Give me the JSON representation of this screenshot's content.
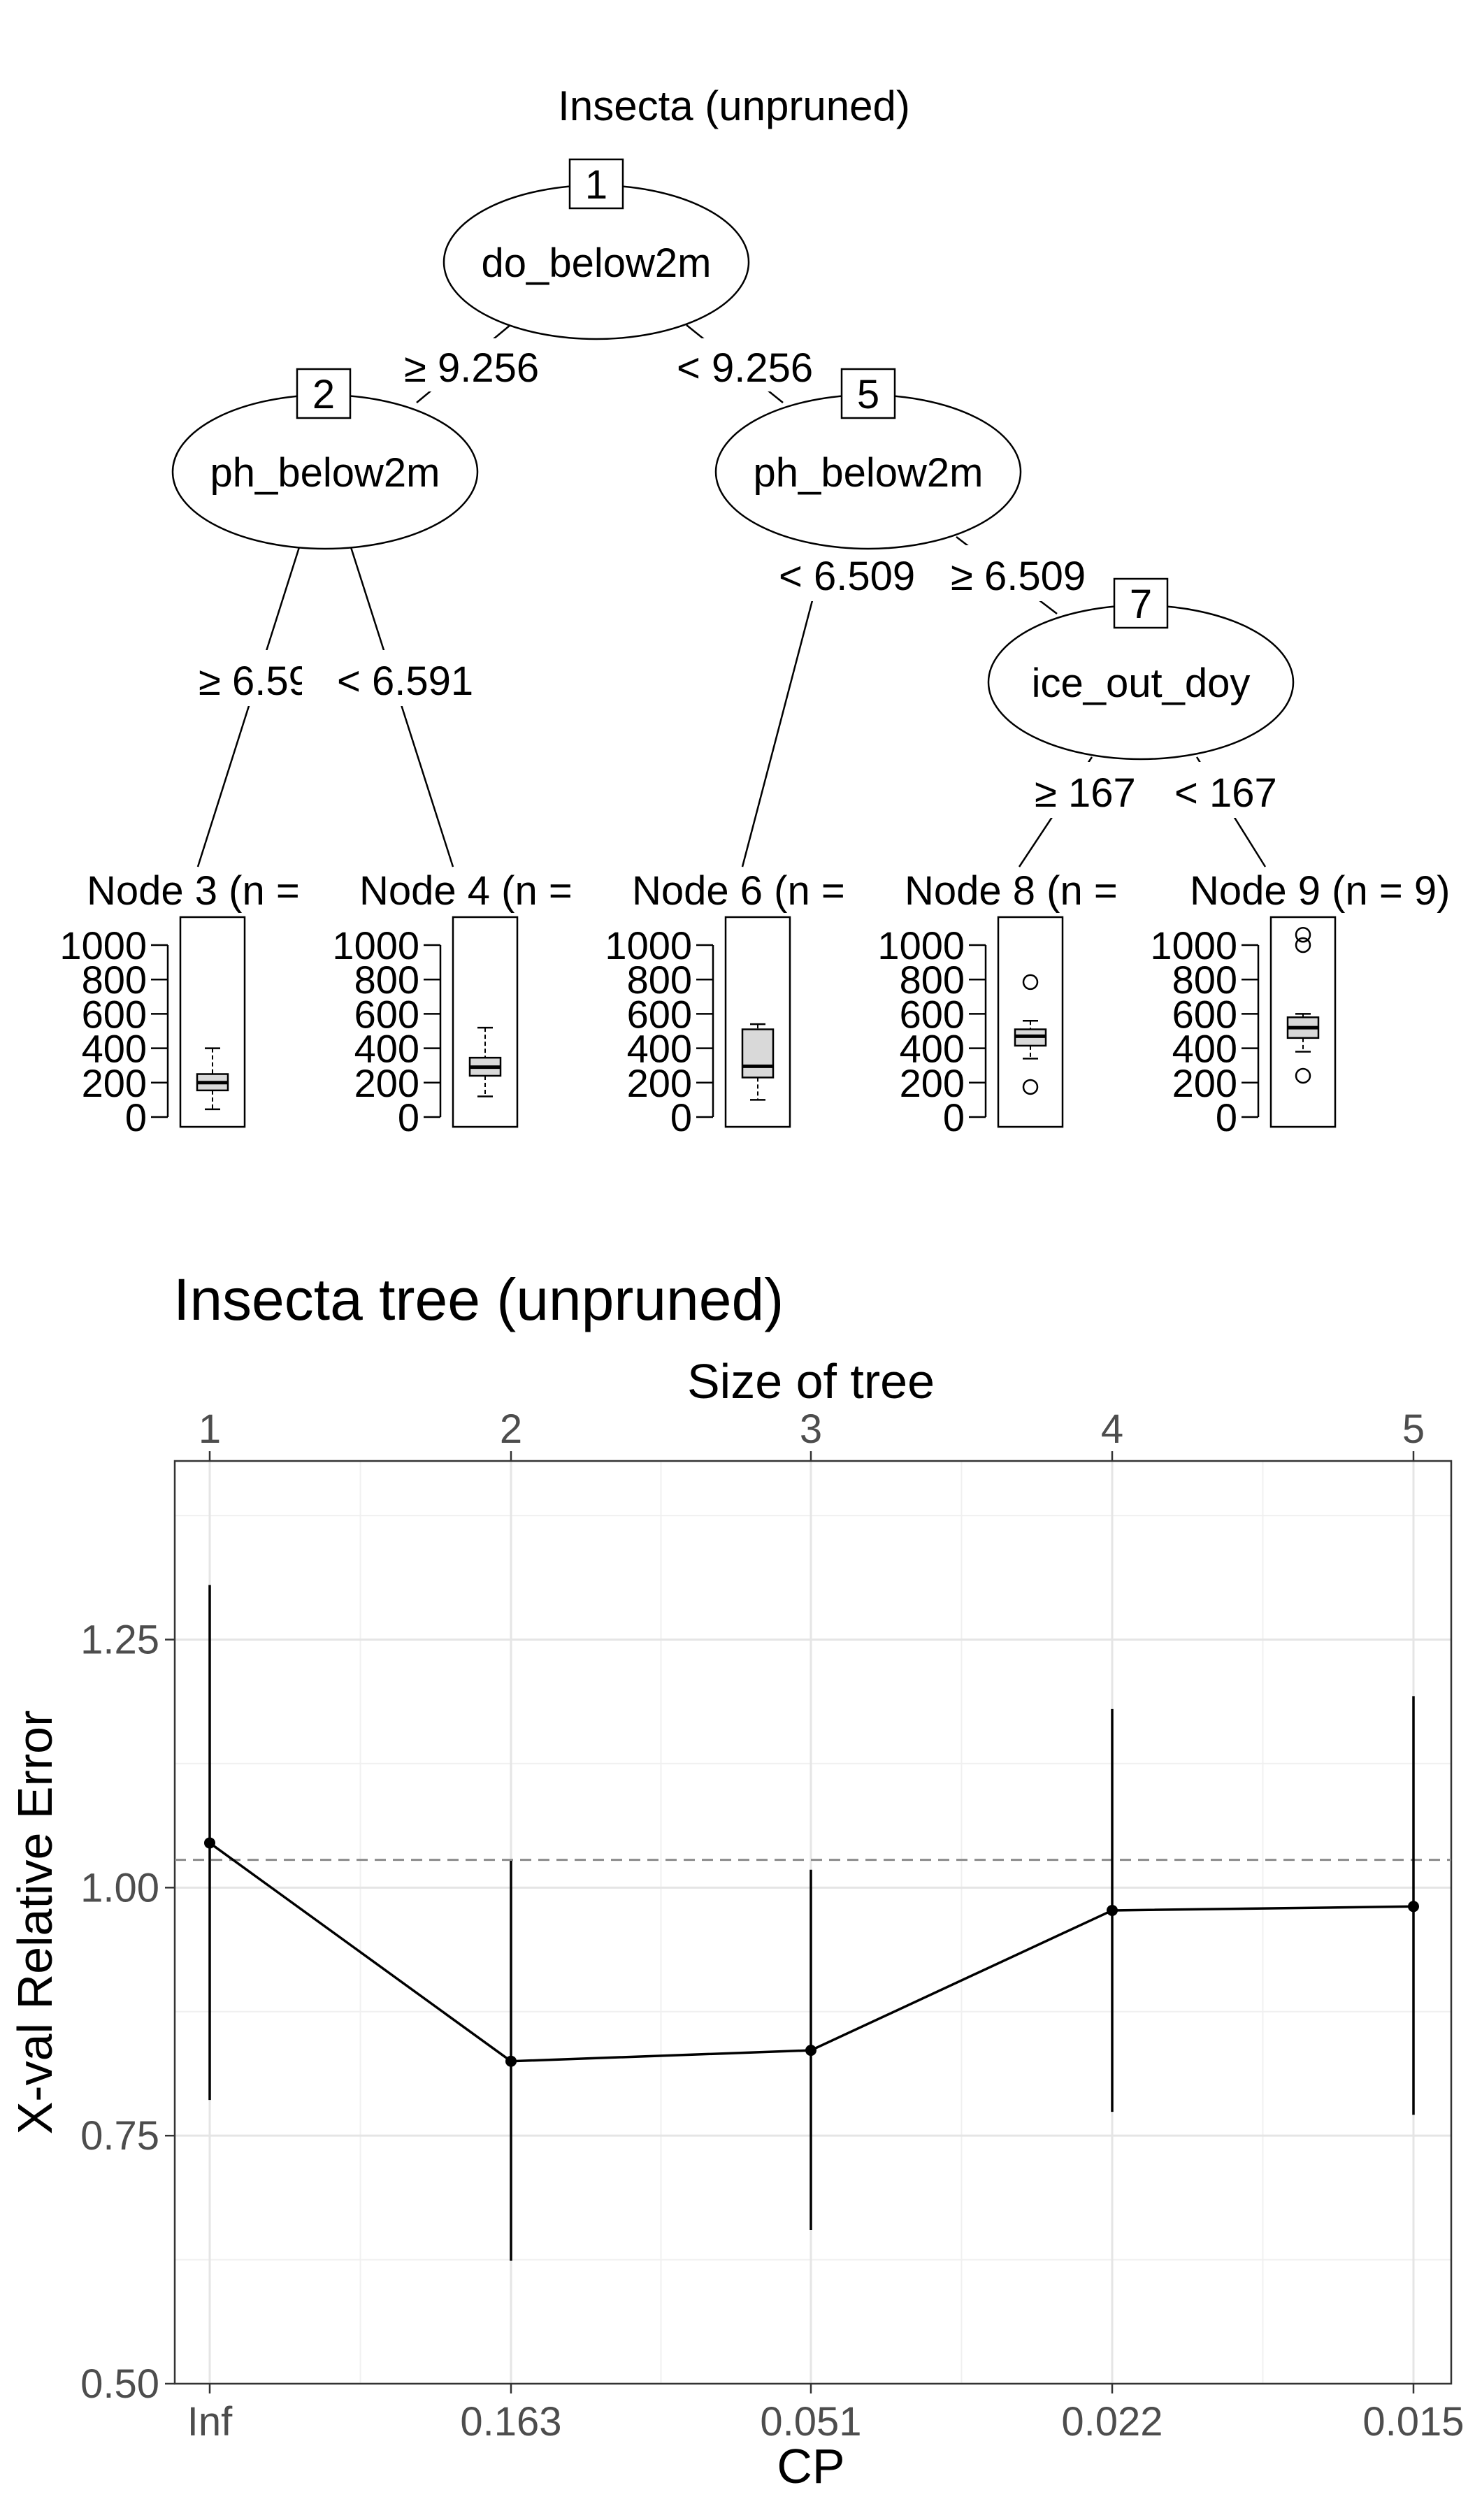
{
  "tree": {
    "title": "Insecta (unpruned)",
    "nodes": [
      {
        "id": "1",
        "label": "do_below2m"
      },
      {
        "id": "2",
        "label": "ph_below2m"
      },
      {
        "id": "5",
        "label": "ph_below2m"
      },
      {
        "id": "7",
        "label": "ice_out_doy"
      }
    ],
    "edges": [
      {
        "label": "≥ 9.256"
      },
      {
        "label": "< 9.256"
      },
      {
        "label": "≥ 6.59"
      },
      {
        "label": "< 6.591"
      },
      {
        "label": "< 6.509"
      },
      {
        "label": "≥ 6.509"
      },
      {
        "label": "≥ 167"
      },
      {
        "label": "< 167"
      }
    ],
    "leaves": [
      {
        "label": "Node 3 (n = ",
        "box": {
          "min": 45,
          "q1": 155,
          "median": 200,
          "q3": 250,
          "max": 400,
          "outliers": []
        }
      },
      {
        "label": "Node 4 (n = ",
        "box": {
          "min": 120,
          "q1": 240,
          "median": 290,
          "q3": 345,
          "max": 520,
          "outliers": []
        }
      },
      {
        "label": "Node 6 (n = ",
        "box": {
          "min": 100,
          "q1": 230,
          "median": 295,
          "q3": 510,
          "max": 540,
          "outliers": []
        }
      },
      {
        "label": "Node 8 (n = ",
        "box": {
          "min": 340,
          "q1": 415,
          "median": 470,
          "q3": 510,
          "max": 560,
          "outliers": [
            175,
            785
          ]
        }
      },
      {
        "label": "Node 9 (n = 9)",
        "box": {
          "min": 380,
          "q1": 460,
          "median": 520,
          "q3": 580,
          "max": 600,
          "outliers": [
            240,
            1000,
            1060
          ]
        }
      }
    ],
    "box_axis": {
      "ticks": [
        "1000",
        "800",
        "600",
        "400",
        "200",
        "0"
      ],
      "tick_values": [
        1000,
        800,
        600,
        400,
        200,
        0
      ],
      "ylim": [
        0,
        1000
      ]
    }
  },
  "chart_data": {
    "type": "line",
    "title": "Insecta tree (unpruned)",
    "xlabel": "CP",
    "ylabel": "X-val Relative Error",
    "top_axis_label": "Size of tree",
    "categories": [
      "Inf",
      "0.163",
      "0.051",
      "0.022",
      "0.015"
    ],
    "tree_sizes": [
      "1",
      "2",
      "3",
      "4",
      "5"
    ],
    "y_ticks": [
      "0.50",
      "0.75",
      "1.00",
      "1.25"
    ],
    "ylim": [
      0.5,
      1.43
    ],
    "reference_line": 1.028,
    "series": [
      {
        "values": [
          1.045,
          0.825,
          0.836,
          0.977,
          0.981
        ],
        "error_low": [
          0.786,
          0.624,
          0.655,
          0.774,
          0.771
        ],
        "error_high": [
          1.305,
          1.027,
          1.018,
          1.18,
          1.193
        ]
      }
    ],
    "grid": true
  }
}
